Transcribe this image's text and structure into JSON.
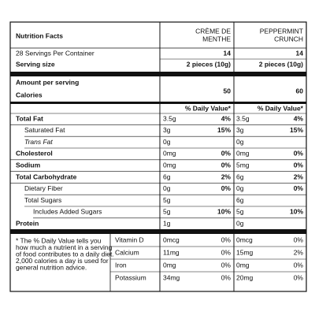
{
  "header": {
    "title": "Nutrition Facts",
    "columns": [
      [
        "CRÈME DE",
        "MENTHE"
      ],
      [
        "PEPPERMINT",
        "CRUNCH"
      ]
    ]
  },
  "servings": {
    "label": "28 Servings Per Container",
    "values": [
      "14",
      "14"
    ]
  },
  "serving_size": {
    "label": "Serving size",
    "values": [
      "2 pieces (10g)",
      "2 pieces (10g)"
    ]
  },
  "calories": {
    "caption": "Amount per serving",
    "label": "Calories",
    "values": [
      "50",
      "60"
    ]
  },
  "daily_value_header": [
    "% Daily Value*",
    "% Daily Value*"
  ],
  "nutrients": [
    {
      "name": "Total Fat",
      "values": [
        [
          "3.5g",
          "4%"
        ],
        [
          "3.5g",
          "4%"
        ]
      ]
    },
    {
      "name": "Saturated Fat",
      "values": [
        [
          "3g",
          "15%"
        ],
        [
          "3g",
          "15%"
        ]
      ]
    },
    {
      "name": "Trans Fat",
      "values": [
        [
          "0g"
        ],
        [
          "0g"
        ]
      ]
    },
    {
      "name": "Cholesterol",
      "values": [
        [
          "0mg",
          "0%"
        ],
        [
          "0mg",
          "0%"
        ]
      ]
    },
    {
      "name": "Sodium",
      "values": [
        [
          "0mg",
          "0%"
        ],
        [
          "5mg",
          "0%"
        ]
      ]
    },
    {
      "name": "Total Carbohydrate",
      "values": [
        [
          "6g",
          "2%"
        ],
        [
          "6g",
          "2%"
        ]
      ]
    },
    {
      "name": "Dietary Fiber",
      "values": [
        [
          "0g",
          "0%"
        ],
        [
          "0g",
          "0%"
        ]
      ]
    },
    {
      "name": "Total Sugars",
      "values": [
        [
          "5g"
        ],
        [
          "6g"
        ]
      ]
    },
    {
      "name": "Includes Added Sugars",
      "values": [
        [
          "5g",
          "10%"
        ],
        [
          "5g",
          "10%"
        ]
      ]
    },
    {
      "name": "Protein",
      "values": [
        [
          "1g"
        ],
        [
          "0g"
        ]
      ]
    }
  ],
  "footnote": [
    "* The % Daily Value tells you",
    "how much a nutrient in a serving",
    "of food contributes to a daily diet.",
    "2,000 calories a day is used for",
    "general nutrition advice."
  ],
  "vitamins": [
    {
      "name": "Vitamin D",
      "values": [
        [
          "0mcg",
          "0%"
        ],
        [
          "0mcg",
          "0%"
        ]
      ]
    },
    {
      "name": "Calcium",
      "values": [
        [
          "11mg",
          "0%"
        ],
        [
          "15mg",
          "2%"
        ]
      ]
    },
    {
      "name": "Iron",
      "values": [
        [
          "0mg",
          "0%"
        ],
        [
          "0mg",
          "0%"
        ]
      ]
    },
    {
      "name": "Potassium",
      "values": [
        [
          "34mg",
          "0%"
        ],
        [
          "20mg",
          "0%"
        ]
      ]
    }
  ]
}
